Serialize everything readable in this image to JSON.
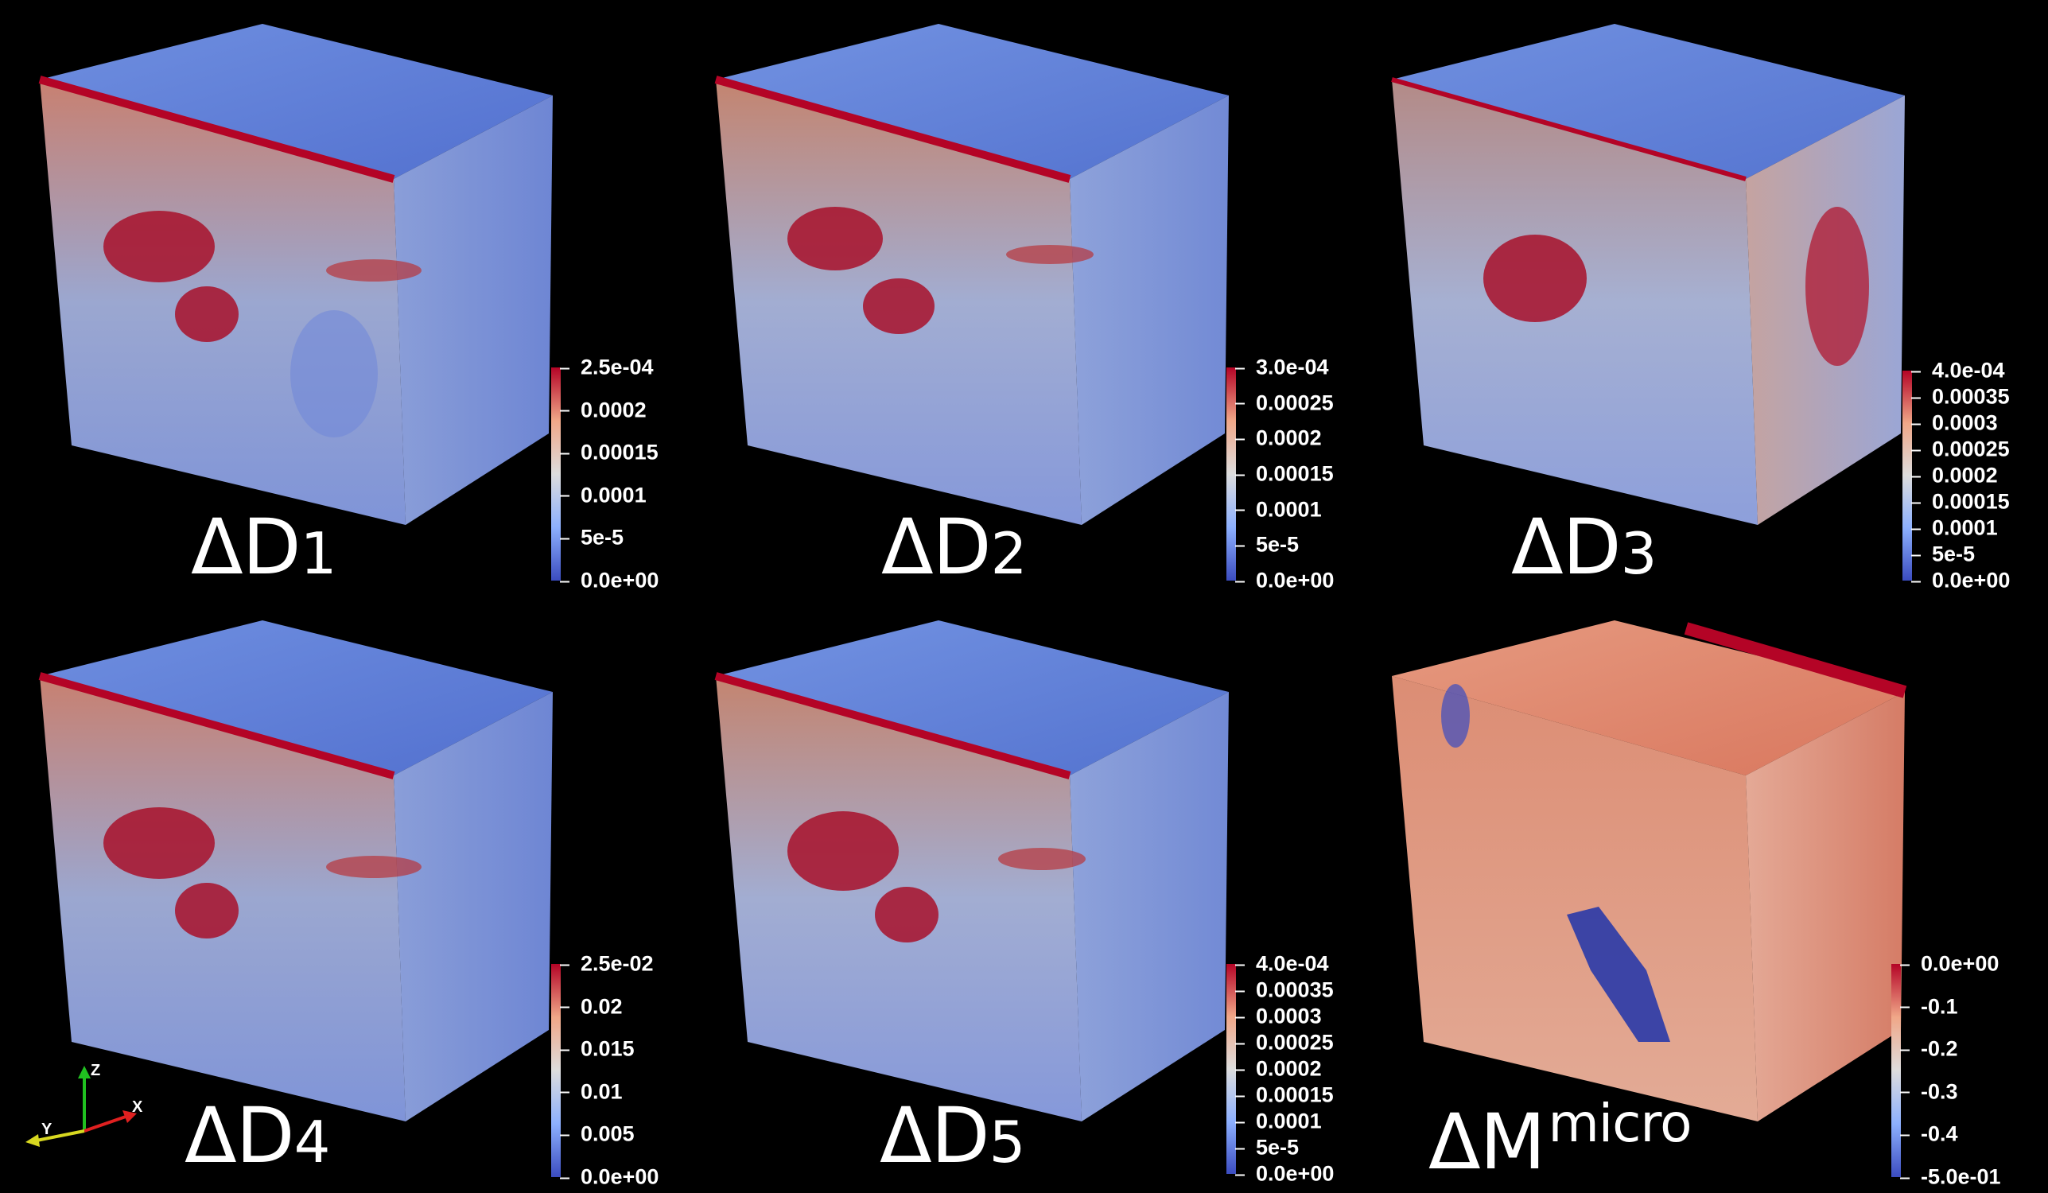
{
  "panels": [
    {
      "id": "d1",
      "label_main": "ΔD",
      "label_sub": "1",
      "label_sup": "",
      "colorbar_ticks": [
        "2.5e-04",
        "0.0002",
        "0.00015",
        "0.0001",
        "5e-5",
        "0.0e+00"
      ]
    },
    {
      "id": "d2",
      "label_main": "ΔD",
      "label_sub": "2",
      "label_sup": "",
      "colorbar_ticks": [
        "3.0e-04",
        "0.00025",
        "0.0002",
        "0.00015",
        "0.0001",
        "5e-5",
        "0.0e+00"
      ]
    },
    {
      "id": "d3",
      "label_main": "ΔD",
      "label_sub": "3",
      "label_sup": "",
      "colorbar_ticks": [
        "4.0e-04",
        "0.00035",
        "0.0003",
        "0.00025",
        "0.0002",
        "0.00015",
        "0.0001",
        "5e-5",
        "0.0e+00"
      ]
    },
    {
      "id": "d4",
      "label_main": "ΔD",
      "label_sub": "4",
      "label_sup": "",
      "colorbar_ticks": [
        "2.5e-02",
        "0.02",
        "0.015",
        "0.01",
        "0.005",
        "0.0e+00"
      ]
    },
    {
      "id": "d5",
      "label_main": "ΔD",
      "label_sub": "5",
      "label_sup": "",
      "colorbar_ticks": [
        "4.0e-04",
        "0.00035",
        "0.0003",
        "0.00025",
        "0.0002",
        "0.00015",
        "0.0001",
        "5e-5",
        "0.0e+00"
      ]
    },
    {
      "id": "micro",
      "label_main": "ΔM",
      "label_sub": "",
      "label_sup": "micro",
      "colorbar_ticks": [
        "0.0e+00",
        "-0.1",
        "-0.2",
        "-0.3",
        "-0.4",
        "-5.0e-01"
      ]
    }
  ],
  "axes_labels": {
    "x": "X",
    "y": "Y",
    "z": "Z"
  },
  "colors": {
    "background": "#000000",
    "cool": "#3b4cc0",
    "mid": "#dddddd",
    "warm": "#b40426",
    "axis_x": "#e02020",
    "axis_y": "#d8d820",
    "axis_z": "#20c020"
  }
}
